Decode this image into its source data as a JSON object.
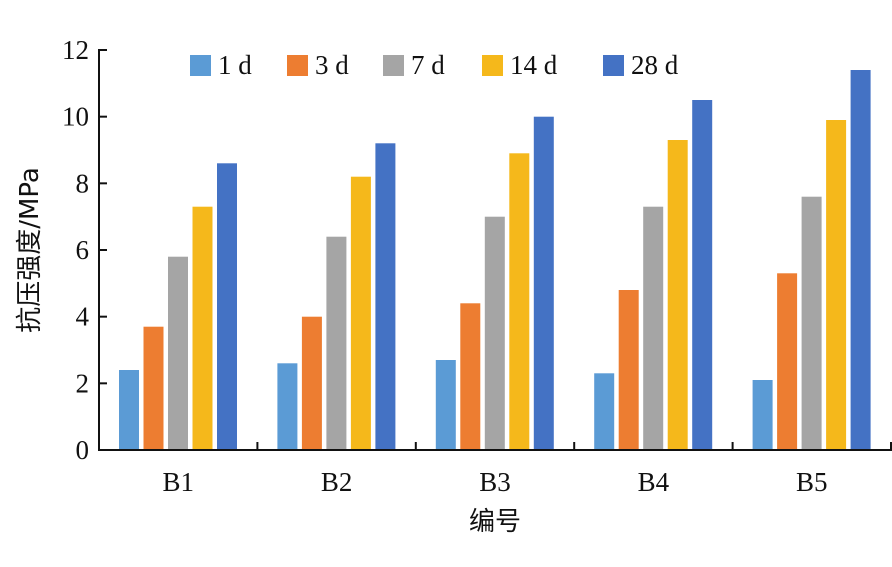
{
  "chart_data": {
    "type": "bar",
    "title": "",
    "xlabel": "编号",
    "ylabel": "抗压强度/MPa",
    "categories": [
      "B1",
      "B2",
      "B3",
      "B4",
      "B5"
    ],
    "ylim": [
      0,
      12
    ],
    "yticks": [
      "0",
      "2",
      "4",
      "6",
      "8",
      "10",
      "12"
    ],
    "grid": false,
    "legend_position": "top",
    "series": [
      {
        "name": "1 d",
        "color": "#5b9bd5",
        "values": [
          2.4,
          2.6,
          2.7,
          2.3,
          2.1
        ]
      },
      {
        "name": "3 d",
        "color": "#ed7d31",
        "values": [
          3.7,
          4.0,
          4.4,
          4.8,
          5.3
        ]
      },
      {
        "name": "7 d",
        "color": "#a5a5a5",
        "values": [
          5.8,
          6.4,
          7.0,
          7.3,
          7.6
        ]
      },
      {
        "name": "14 d",
        "color": "#f5b81b",
        "values": [
          7.3,
          8.2,
          8.9,
          9.3,
          9.9
        ]
      },
      {
        "name": "28 d",
        "color": "#4472c4",
        "values": [
          8.6,
          9.2,
          10.0,
          10.5,
          11.4
        ]
      }
    ]
  }
}
